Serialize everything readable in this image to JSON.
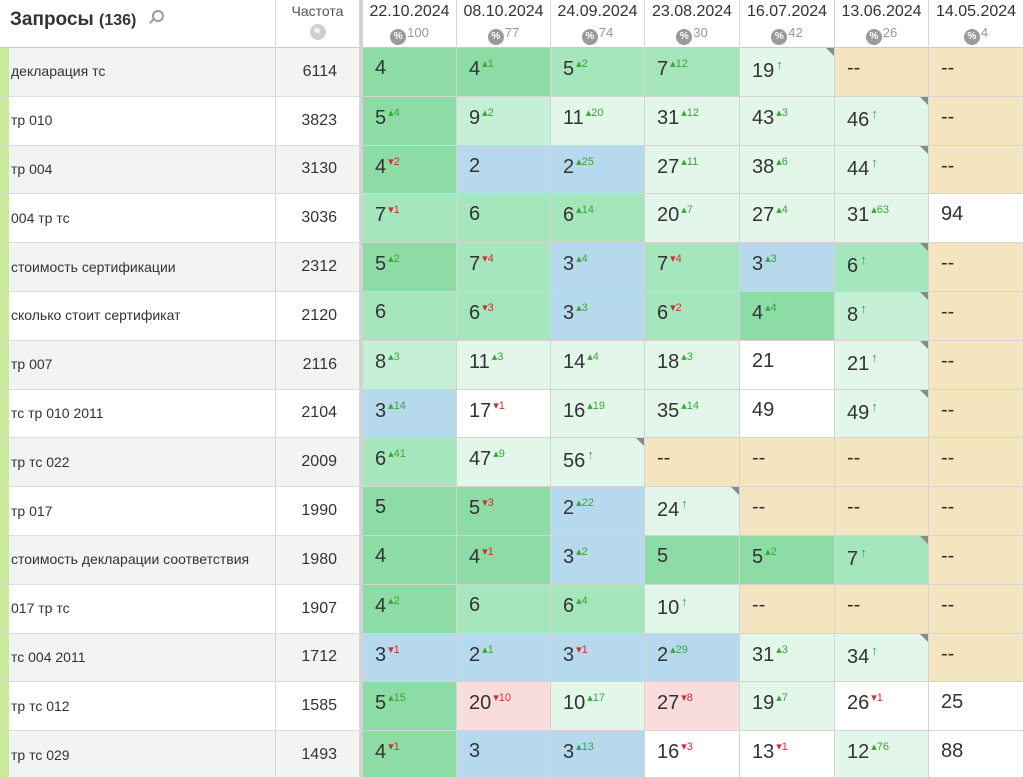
{
  "header": {
    "title": "Запросы",
    "count": "(136)",
    "frequency_label": "Частота",
    "search_icon": "search-icon",
    "globe_icon": "globe-icon",
    "percent_icon": "percent-icon"
  },
  "dates": [
    {
      "label": "22.10.2024",
      "pct": "100"
    },
    {
      "label": "08.10.2024",
      "pct": "77"
    },
    {
      "label": "24.09.2024",
      "pct": "74"
    },
    {
      "label": "23.08.2024",
      "pct": "30"
    },
    {
      "label": "16.07.2024",
      "pct": "42"
    },
    {
      "label": "13.06.2024",
      "pct": "26"
    },
    {
      "label": "14.05.2024",
      "pct": "4"
    }
  ],
  "colors": {
    "g1": "#8ddca5",
    "g2": "#a6e6bd",
    "g3": "#c6f0d5",
    "g4": "#e2f7ea",
    "blue": "#b6d9ee",
    "white": "#ffffff",
    "tan": "#f3e5c0",
    "pink": "#f9dcdc",
    "delta_up": "#3aa63a",
    "delta_down": "#d03030",
    "stripe": "#c9ea9a"
  },
  "rows": [
    {
      "query": "декларация тс",
      "freq": "6114",
      "cells": [
        {
          "v": "4",
          "d": "",
          "t": "",
          "c": "g1"
        },
        {
          "v": "4",
          "d": "1",
          "t": "up",
          "c": "g1"
        },
        {
          "v": "5",
          "d": "2",
          "t": "up",
          "c": "g2"
        },
        {
          "v": "7",
          "d": "12",
          "t": "up",
          "c": "g2"
        },
        {
          "v": "19",
          "d": "↑",
          "t": "new",
          "c": "g4",
          "k": 1
        },
        {
          "v": "--",
          "d": "",
          "t": "",
          "c": "tan"
        },
        {
          "v": "--",
          "d": "",
          "t": "",
          "c": "tan"
        }
      ]
    },
    {
      "query": "тр 010",
      "freq": "3823",
      "cells": [
        {
          "v": "5",
          "d": "4",
          "t": "up",
          "c": "g1"
        },
        {
          "v": "9",
          "d": "2",
          "t": "up",
          "c": "g3"
        },
        {
          "v": "11",
          "d": "20",
          "t": "up",
          "c": "g4"
        },
        {
          "v": "31",
          "d": "12",
          "t": "up",
          "c": "g4"
        },
        {
          "v": "43",
          "d": "3",
          "t": "up",
          "c": "g4"
        },
        {
          "v": "46",
          "d": "↑",
          "t": "new",
          "c": "g4",
          "k": 1
        },
        {
          "v": "--",
          "d": "",
          "t": "",
          "c": "tan"
        }
      ]
    },
    {
      "query": "тр 004",
      "freq": "3130",
      "cells": [
        {
          "v": "4",
          "d": "2",
          "t": "down",
          "c": "g1"
        },
        {
          "v": "2",
          "d": "",
          "t": "",
          "c": "blue"
        },
        {
          "v": "2",
          "d": "25",
          "t": "up",
          "c": "blue"
        },
        {
          "v": "27",
          "d": "11",
          "t": "up",
          "c": "g4"
        },
        {
          "v": "38",
          "d": "6",
          "t": "up",
          "c": "g4"
        },
        {
          "v": "44",
          "d": "↑",
          "t": "new",
          "c": "g4",
          "k": 1
        },
        {
          "v": "--",
          "d": "",
          "t": "",
          "c": "tan"
        }
      ]
    },
    {
      "query": "004 тр тс",
      "freq": "3036",
      "cells": [
        {
          "v": "7",
          "d": "1",
          "t": "down",
          "c": "g2"
        },
        {
          "v": "6",
          "d": "",
          "t": "",
          "c": "g2"
        },
        {
          "v": "6",
          "d": "14",
          "t": "up",
          "c": "g2"
        },
        {
          "v": "20",
          "d": "7",
          "t": "up",
          "c": "g4"
        },
        {
          "v": "27",
          "d": "4",
          "t": "up",
          "c": "g4"
        },
        {
          "v": "31",
          "d": "63",
          "t": "up",
          "c": "g4"
        },
        {
          "v": "94",
          "d": "",
          "t": "",
          "c": "white"
        }
      ]
    },
    {
      "query": "стоимость сертификации",
      "freq": "2312",
      "cells": [
        {
          "v": "5",
          "d": "2",
          "t": "up",
          "c": "g1"
        },
        {
          "v": "7",
          "d": "4",
          "t": "down",
          "c": "g2"
        },
        {
          "v": "3",
          "d": "4",
          "t": "up",
          "c": "blue"
        },
        {
          "v": "7",
          "d": "4",
          "t": "down",
          "c": "g2"
        },
        {
          "v": "3",
          "d": "3",
          "t": "up",
          "c": "blue"
        },
        {
          "v": "6",
          "d": "↑",
          "t": "new",
          "c": "g2",
          "k": 1
        },
        {
          "v": "--",
          "d": "",
          "t": "",
          "c": "tan"
        }
      ]
    },
    {
      "query": "сколько стоит сертификат",
      "freq": "2120",
      "cells": [
        {
          "v": "6",
          "d": "",
          "t": "",
          "c": "g2"
        },
        {
          "v": "6",
          "d": "3",
          "t": "down",
          "c": "g2"
        },
        {
          "v": "3",
          "d": "3",
          "t": "up",
          "c": "blue"
        },
        {
          "v": "6",
          "d": "2",
          "t": "down",
          "c": "g2"
        },
        {
          "v": "4",
          "d": "4",
          "t": "up",
          "c": "g1"
        },
        {
          "v": "8",
          "d": "↑",
          "t": "new",
          "c": "g3",
          "k": 1
        },
        {
          "v": "--",
          "d": "",
          "t": "",
          "c": "tan"
        }
      ]
    },
    {
      "query": "тр 007",
      "freq": "2116",
      "cells": [
        {
          "v": "8",
          "d": "3",
          "t": "up",
          "c": "g3"
        },
        {
          "v": "11",
          "d": "3",
          "t": "up",
          "c": "g4"
        },
        {
          "v": "14",
          "d": "4",
          "t": "up",
          "c": "g4"
        },
        {
          "v": "18",
          "d": "3",
          "t": "up",
          "c": "g4"
        },
        {
          "v": "21",
          "d": "",
          "t": "",
          "c": "white"
        },
        {
          "v": "21",
          "d": "↑",
          "t": "new",
          "c": "g4",
          "k": 1
        },
        {
          "v": "--",
          "d": "",
          "t": "",
          "c": "tan"
        }
      ]
    },
    {
      "query": "тс тр 010 2011",
      "freq": "2104",
      "cells": [
        {
          "v": "3",
          "d": "14",
          "t": "up",
          "c": "blue"
        },
        {
          "v": "17",
          "d": "1",
          "t": "down",
          "c": "white"
        },
        {
          "v": "16",
          "d": "19",
          "t": "up",
          "c": "g4"
        },
        {
          "v": "35",
          "d": "14",
          "t": "up",
          "c": "g4"
        },
        {
          "v": "49",
          "d": "",
          "t": "",
          "c": "white"
        },
        {
          "v": "49",
          "d": "↑",
          "t": "new",
          "c": "g4",
          "k": 1
        },
        {
          "v": "--",
          "d": "",
          "t": "",
          "c": "tan"
        }
      ]
    },
    {
      "query": "тр тс 022",
      "freq": "2009",
      "cells": [
        {
          "v": "6",
          "d": "41",
          "t": "up",
          "c": "g2"
        },
        {
          "v": "47",
          "d": "9",
          "t": "up",
          "c": "g4"
        },
        {
          "v": "56",
          "d": "↑",
          "t": "new",
          "c": "g4",
          "k": 1
        },
        {
          "v": "--",
          "d": "",
          "t": "",
          "c": "tan"
        },
        {
          "v": "--",
          "d": "",
          "t": "",
          "c": "tan"
        },
        {
          "v": "--",
          "d": "",
          "t": "",
          "c": "tan"
        },
        {
          "v": "--",
          "d": "",
          "t": "",
          "c": "tan"
        }
      ]
    },
    {
      "query": "тр 017",
      "freq": "1990",
      "cells": [
        {
          "v": "5",
          "d": "",
          "t": "",
          "c": "g1"
        },
        {
          "v": "5",
          "d": "3",
          "t": "down",
          "c": "g1"
        },
        {
          "v": "2",
          "d": "22",
          "t": "up",
          "c": "blue"
        },
        {
          "v": "24",
          "d": "↑",
          "t": "new",
          "c": "g4",
          "k": 1
        },
        {
          "v": "--",
          "d": "",
          "t": "",
          "c": "tan"
        },
        {
          "v": "--",
          "d": "",
          "t": "",
          "c": "tan"
        },
        {
          "v": "--",
          "d": "",
          "t": "",
          "c": "tan"
        }
      ]
    },
    {
      "query": "стоимость декларации соответствия",
      "freq": "1980",
      "cells": [
        {
          "v": "4",
          "d": "",
          "t": "",
          "c": "g1"
        },
        {
          "v": "4",
          "d": "1",
          "t": "down",
          "c": "g1"
        },
        {
          "v": "3",
          "d": "2",
          "t": "up",
          "c": "blue"
        },
        {
          "v": "5",
          "d": "",
          "t": "",
          "c": "g1"
        },
        {
          "v": "5",
          "d": "2",
          "t": "up",
          "c": "g1"
        },
        {
          "v": "7",
          "d": "↑",
          "t": "new",
          "c": "g2",
          "k": 1
        },
        {
          "v": "--",
          "d": "",
          "t": "",
          "c": "tan"
        }
      ]
    },
    {
      "query": "017 тр тс",
      "freq": "1907",
      "cells": [
        {
          "v": "4",
          "d": "2",
          "t": "up",
          "c": "g1"
        },
        {
          "v": "6",
          "d": "",
          "t": "",
          "c": "g2"
        },
        {
          "v": "6",
          "d": "4",
          "t": "up",
          "c": "g2"
        },
        {
          "v": "10",
          "d": "↑",
          "t": "new",
          "c": "g4"
        },
        {
          "v": "--",
          "d": "",
          "t": "",
          "c": "tan"
        },
        {
          "v": "--",
          "d": "",
          "t": "",
          "c": "tan"
        },
        {
          "v": "--",
          "d": "",
          "t": "",
          "c": "tan"
        }
      ]
    },
    {
      "query": "тс 004 2011",
      "freq": "1712",
      "cells": [
        {
          "v": "3",
          "d": "1",
          "t": "down",
          "c": "blue"
        },
        {
          "v": "2",
          "d": "1",
          "t": "up",
          "c": "blue"
        },
        {
          "v": "3",
          "d": "1",
          "t": "down",
          "c": "blue"
        },
        {
          "v": "2",
          "d": "29",
          "t": "up",
          "c": "blue"
        },
        {
          "v": "31",
          "d": "3",
          "t": "up",
          "c": "g4"
        },
        {
          "v": "34",
          "d": "↑",
          "t": "new",
          "c": "g4",
          "k": 1
        },
        {
          "v": "--",
          "d": "",
          "t": "",
          "c": "tan"
        }
      ]
    },
    {
      "query": "тр тс 012",
      "freq": "1585",
      "cells": [
        {
          "v": "5",
          "d": "15",
          "t": "up",
          "c": "g1"
        },
        {
          "v": "20",
          "d": "10",
          "t": "down",
          "c": "pink"
        },
        {
          "v": "10",
          "d": "17",
          "t": "up",
          "c": "g4"
        },
        {
          "v": "27",
          "d": "8",
          "t": "down",
          "c": "pink"
        },
        {
          "v": "19",
          "d": "7",
          "t": "up",
          "c": "g4"
        },
        {
          "v": "26",
          "d": "1",
          "t": "down",
          "c": "white"
        },
        {
          "v": "25",
          "d": "",
          "t": "",
          "c": "white"
        }
      ]
    },
    {
      "query": "тр тс 029",
      "freq": "1493",
      "cells": [
        {
          "v": "4",
          "d": "1",
          "t": "down",
          "c": "g1"
        },
        {
          "v": "3",
          "d": "",
          "t": "",
          "c": "blue"
        },
        {
          "v": "3",
          "d": "13",
          "t": "up",
          "c": "blue"
        },
        {
          "v": "16",
          "d": "3",
          "t": "down",
          "c": "white"
        },
        {
          "v": "13",
          "d": "1",
          "t": "down",
          "c": "white"
        },
        {
          "v": "12",
          "d": "76",
          "t": "up",
          "c": "g4"
        },
        {
          "v": "88",
          "d": "",
          "t": "",
          "c": "white"
        }
      ]
    }
  ]
}
